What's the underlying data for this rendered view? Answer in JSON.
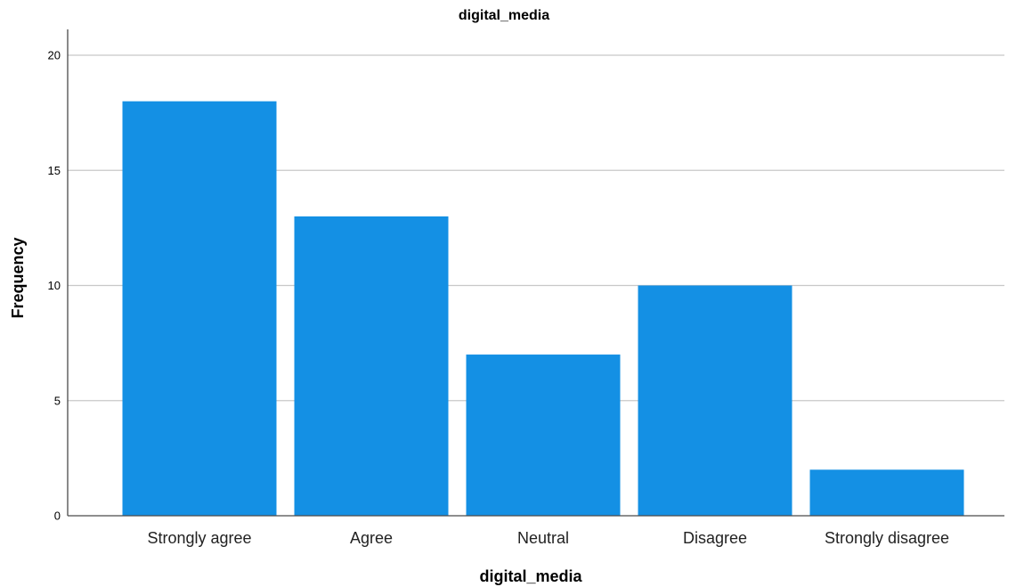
{
  "chart_data": {
    "type": "bar",
    "title": "digital_media",
    "xlabel": "digital_media",
    "ylabel": "Frequency",
    "categories": [
      "Strongly agree",
      "Agree",
      "Neutral",
      "Disagree",
      "Strongly disagree"
    ],
    "values": [
      18,
      13,
      7,
      10,
      2
    ],
    "ylim": [
      0,
      21
    ],
    "yticks": [
      0,
      5,
      10,
      15,
      20
    ],
    "grid": true,
    "bar_color": "#1490e4"
  }
}
